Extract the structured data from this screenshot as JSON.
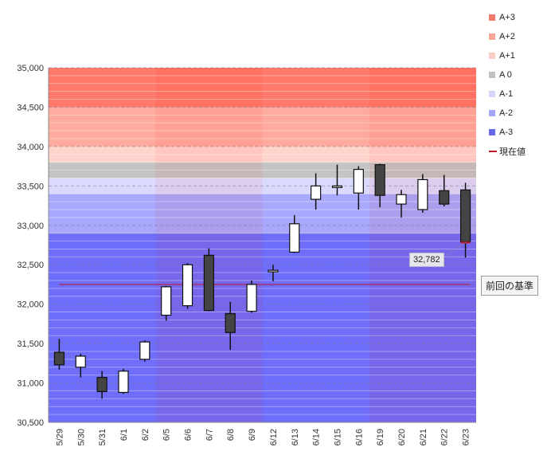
{
  "chart_data": {
    "type": "candlestick",
    "categories": [
      "5/29",
      "5/30",
      "5/31",
      "6/1",
      "6/2",
      "6/5",
      "6/6",
      "6/7",
      "6/8",
      "6/9",
      "6/12",
      "6/13",
      "6/14",
      "6/15",
      "6/16",
      "6/19",
      "6/20",
      "6/21",
      "6/22",
      "6/23"
    ],
    "candles": [
      {
        "date": "5/29",
        "open": 31390,
        "high": 31560,
        "low": 31170,
        "close": 31230
      },
      {
        "date": "5/30",
        "open": 31200,
        "high": 31370,
        "low": 31070,
        "close": 31340
      },
      {
        "date": "5/31",
        "open": 31070,
        "high": 31150,
        "low": 30800,
        "close": 30890
      },
      {
        "date": "6/1",
        "open": 30880,
        "high": 31180,
        "low": 30860,
        "close": 31150
      },
      {
        "date": "6/2",
        "open": 31300,
        "high": 31540,
        "low": 31270,
        "close": 31520
      },
      {
        "date": "6/5",
        "open": 31860,
        "high": 32230,
        "low": 31790,
        "close": 32220
      },
      {
        "date": "6/6",
        "open": 31980,
        "high": 32520,
        "low": 31940,
        "close": 32500
      },
      {
        "date": "6/7",
        "open": 32620,
        "high": 32710,
        "low": 31910,
        "close": 31920
      },
      {
        "date": "6/8",
        "open": 31880,
        "high": 32030,
        "low": 31420,
        "close": 31640
      },
      {
        "date": "6/9",
        "open": 31910,
        "high": 32300,
        "low": 31890,
        "close": 32250
      },
      {
        "date": "6/12",
        "open": 32410,
        "high": 32500,
        "low": 32290,
        "close": 32430
      },
      {
        "date": "6/13",
        "open": 32660,
        "high": 33130,
        "low": 32650,
        "close": 33020
      },
      {
        "date": "6/14",
        "open": 33330,
        "high": 33660,
        "low": 33200,
        "close": 33500
      },
      {
        "date": "6/15",
        "open": 33480,
        "high": 33770,
        "low": 33380,
        "close": 33500
      },
      {
        "date": "6/16",
        "open": 33410,
        "high": 33750,
        "low": 33200,
        "close": 33710
      },
      {
        "date": "6/19",
        "open": 33770,
        "high": 33780,
        "low": 33230,
        "close": 33380
      },
      {
        "date": "6/20",
        "open": 33270,
        "high": 33450,
        "low": 33100,
        "close": 33390
      },
      {
        "date": "6/21",
        "open": 33200,
        "high": 33650,
        "low": 33160,
        "close": 33580
      },
      {
        "date": "6/22",
        "open": 33440,
        "high": 33640,
        "low": 33240,
        "close": 33270
      },
      {
        "date": "6/23",
        "open": 33450,
        "high": 33540,
        "low": 32590,
        "close": 32790
      }
    ],
    "ylim": [
      30500,
      35000
    ],
    "y_ticks": [
      "30,500",
      "31,000",
      "31,500",
      "32,000",
      "32,500",
      "33,000",
      "33,500",
      "34,000",
      "34,500",
      "35,000"
    ],
    "y_tick_values": [
      30500,
      31000,
      31500,
      32000,
      32500,
      33000,
      33500,
      34000,
      34500,
      35000
    ],
    "bands": [
      {
        "name": "A+3",
        "from": 34500,
        "to": 35000,
        "color": "#ff7a6a"
      },
      {
        "name": "A+2",
        "from": 34000,
        "to": 34500,
        "color": "#ffaa9e"
      },
      {
        "name": "A+1",
        "from": 33800,
        "to": 34000,
        "color": "#ffd4cc"
      },
      {
        "name": "A 0",
        "from": 33600,
        "to": 33800,
        "color": "#c4c4c4"
      },
      {
        "name": "A-1",
        "from": 33400,
        "to": 33600,
        "color": "#dadafe"
      },
      {
        "name": "A-2",
        "from": 32900,
        "to": 33400,
        "color": "#a8a8fc"
      },
      {
        "name": "A-3",
        "from": 30500,
        "to": 32900,
        "color": "#6e6efa"
      }
    ],
    "week_shading": [
      {
        "start": "6/5",
        "end": "6/9"
      },
      {
        "start": "6/19",
        "end": "6/23"
      }
    ],
    "reference_line": {
      "value": 32250,
      "label": "前回の基準",
      "color": "#c0182a"
    },
    "current_value": {
      "value": 32782,
      "label": "32,782",
      "legend": "現在値",
      "color": "#c0182a"
    },
    "legend": [
      {
        "label": "A+3",
        "color": "#f0786c"
      },
      {
        "label": "A+2",
        "color": "#f7a59a"
      },
      {
        "label": "A+1",
        "color": "#fbcdc4"
      },
      {
        "label": "A 0",
        "color": "#c0c0c0"
      },
      {
        "label": "A-1",
        "color": "#d6d6fa"
      },
      {
        "label": "A-2",
        "color": "#a4a4f6"
      },
      {
        "label": "A-3",
        "color": "#6868ee"
      },
      {
        "label": "現在値",
        "color": "#c0182a",
        "kind": "line"
      }
    ],
    "grid": true,
    "legend_position": "right"
  }
}
